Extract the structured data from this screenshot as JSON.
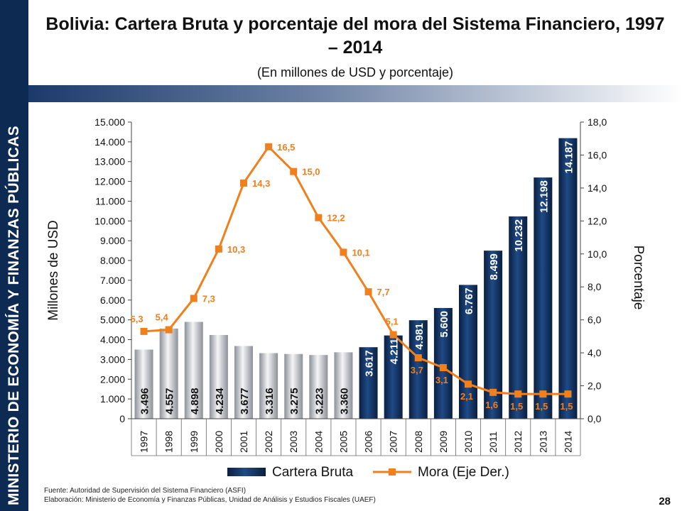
{
  "sidebar": {
    "text": "MINISTERIO DE ECONOMÍA Y FINANZAS PÚBLICAS"
  },
  "title": "Bolivia: Cartera Bruta y porcentaje del mora del Sistema Financiero, 1997 – 2014",
  "subtitle": "(En millones de USD y porcentaje)",
  "footer": {
    "source": "Fuente: Autoridad de Supervisión del Sistema Financiero (ASFI)",
    "elaboration": "Elaboración: Ministerio de Economía y Finanzas Públicas, Unidad de Análisis y Estudios Fiscales (UAEF)"
  },
  "page_number": "28",
  "colors": {
    "sidebar": "#0d2a52",
    "bar_dark": "#0e2a55",
    "bar_light": "#c9ccd3",
    "line": "#f07f1c"
  },
  "chart_data": {
    "type": "bar",
    "categories": [
      "1997",
      "1998",
      "1999",
      "2000",
      "2001",
      "2002",
      "2003",
      "2004",
      "2005",
      "2006",
      "2007",
      "2008",
      "2009",
      "2010",
      "2011",
      "2012",
      "2013",
      "2014"
    ],
    "series": [
      {
        "name": "Cartera Bruta",
        "type": "bar",
        "axis": "left",
        "values": [
          3496,
          4557,
          4898,
          4234,
          3677,
          3316,
          3275,
          3223,
          3360,
          3617,
          4211,
          4981,
          5600,
          6767,
          8499,
          10232,
          12198,
          14187
        ],
        "labels": [
          "3.496",
          "4.557",
          "4.898",
          "4.234",
          "3.677",
          "3.316",
          "3.275",
          "3.223",
          "3.360",
          "3.617",
          "4.211",
          "4.981",
          "5.600",
          "6.767",
          "8.499",
          "10.232",
          "12.198",
          "14.187"
        ]
      },
      {
        "name": "Mora (Eje Der.)",
        "type": "line",
        "axis": "right",
        "values": [
          5.3,
          5.4,
          7.3,
          10.3,
          14.3,
          16.5,
          15.0,
          12.2,
          10.1,
          7.7,
          5.1,
          3.7,
          3.1,
          2.1,
          1.6,
          1.5,
          1.5,
          1.5
        ],
        "labels": [
          "5,3",
          "5,4",
          "7,3",
          "10,3",
          "14,3",
          "16,5",
          "15,0",
          "12,2",
          "10,1",
          "7,7",
          "5,1",
          "3,7",
          "3,1",
          "2,1",
          "1,6",
          "1,5",
          "1,5",
          "1,5"
        ]
      }
    ],
    "ylabel": "Millones de USD",
    "y2label": "Porcentaje",
    "ylim": [
      0,
      15000
    ],
    "y2lim": [
      0,
      18
    ],
    "yticks": [
      "0",
      "1.000",
      "2.000",
      "3.000",
      "4.000",
      "5.000",
      "6.000",
      "7.000",
      "8.000",
      "9.000",
      "10.000",
      "11.000",
      "12.000",
      "13.000",
      "14.000",
      "15.000"
    ],
    "y2ticks": [
      "0,0",
      "2,0",
      "4,0",
      "6,0",
      "8,0",
      "10,0",
      "12,0",
      "14,0",
      "16,0",
      "18,0"
    ],
    "grid": false,
    "legend_position": "bottom"
  }
}
